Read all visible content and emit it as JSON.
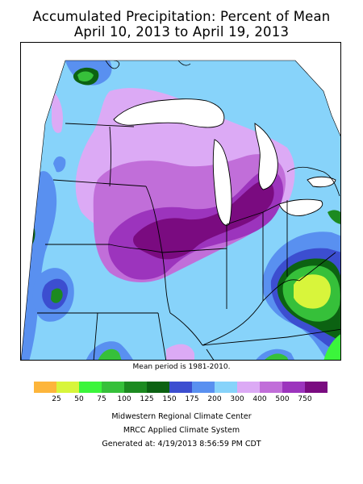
{
  "title": {
    "line1": "Accumulated Precipitation: Percent of Mean",
    "line2": "April 10, 2013 to April 19, 2013"
  },
  "map": {
    "region": "Midwest United States",
    "background_color": "#87d3fa"
  },
  "mean_note": "Mean period is 1981-2010.",
  "legend": {
    "colors": [
      "#fdb53b",
      "#d8f53b",
      "#3bf53b",
      "#36c03a",
      "#1c8a20",
      "#0c6212",
      "#3c4ed0",
      "#5990f0",
      "#87d3fa",
      "#dcaaf5",
      "#c16ed9",
      "#9c34bd",
      "#7a0b80"
    ],
    "labels": [
      "25",
      "50",
      "75",
      "100",
      "125",
      "150",
      "175",
      "200",
      "300",
      "400",
      "500",
      "750"
    ]
  },
  "credits": {
    "line1": "Midwestern Regional Climate Center",
    "line2": "MRCC Applied Climate System",
    "line3": "Generated at: 4/19/2013 8:56:59 PM CDT"
  }
}
